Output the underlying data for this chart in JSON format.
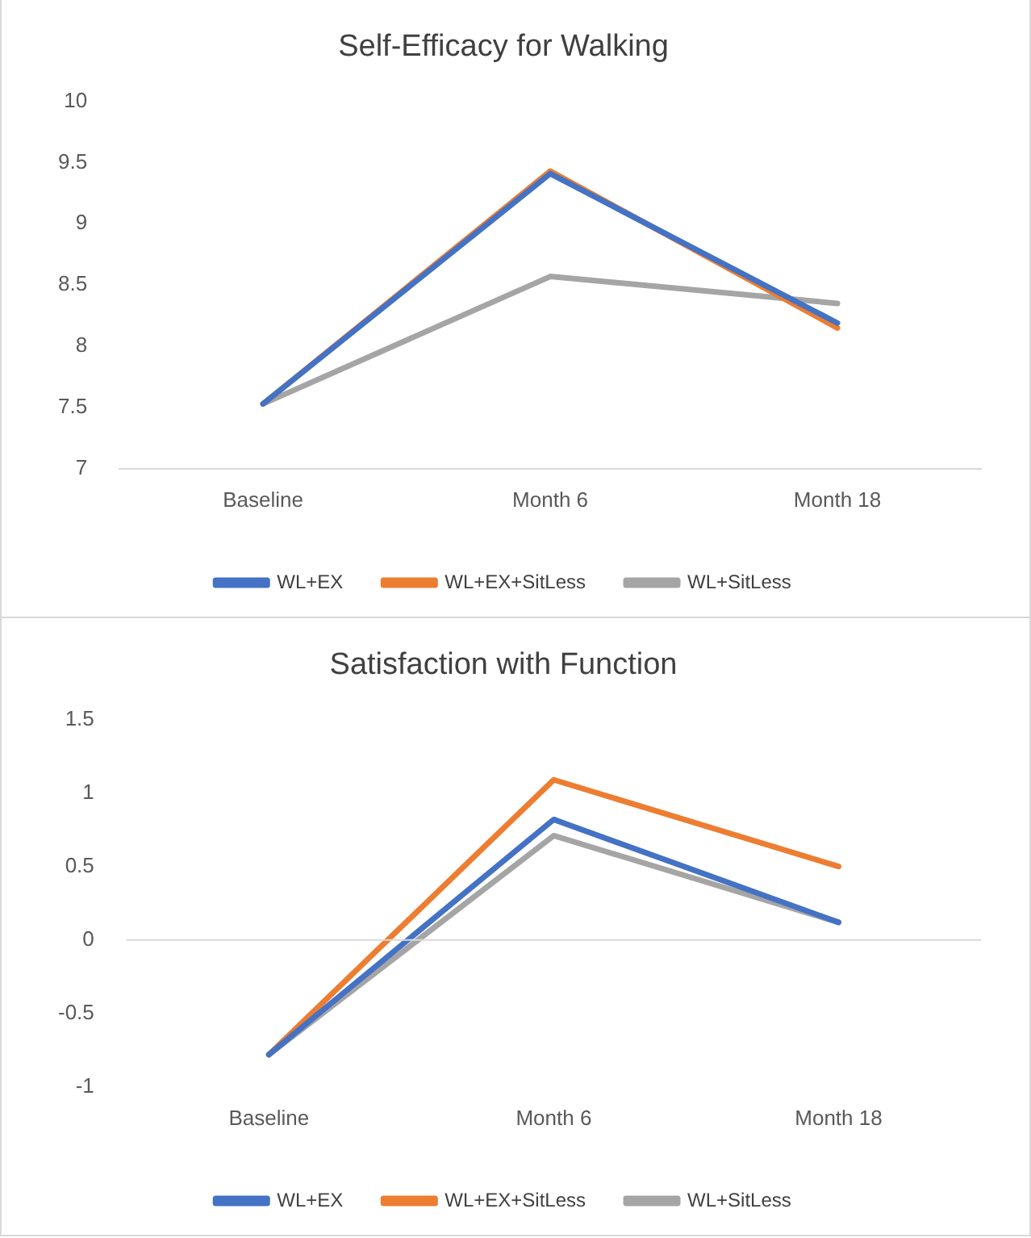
{
  "chart_data": [
    {
      "type": "line",
      "title": "Self-Efficacy for Walking",
      "categories": [
        "Baseline",
        "Month 6",
        "Month 18"
      ],
      "series": [
        {
          "name": "WL+EX",
          "color": "#4472c4",
          "values": [
            7.53,
            9.41,
            8.19
          ]
        },
        {
          "name": "WL+EX+SitLess",
          "color": "#ed7d31",
          "values": [
            7.53,
            9.43,
            8.15
          ]
        },
        {
          "name": "WL+SitLess",
          "color": "#a5a5a5",
          "values": [
            7.53,
            8.57,
            8.35
          ]
        }
      ],
      "ylim": [
        7,
        10
      ],
      "yticks": [
        7,
        7.5,
        8,
        8.5,
        9,
        9.5,
        10
      ],
      "grid": false,
      "legend": "bottom",
      "marker": "none"
    },
    {
      "type": "line",
      "title": "Satisfaction with Function",
      "categories": [
        "Baseline",
        "Month 6",
        "Month 18"
      ],
      "series": [
        {
          "name": "WL+EX",
          "color": "#4472c4",
          "values": [
            -0.78,
            0.82,
            0.12
          ]
        },
        {
          "name": "WL+EX+SitLess",
          "color": "#ed7d31",
          "values": [
            -0.78,
            1.09,
            0.5
          ]
        },
        {
          "name": "WL+SitLess",
          "color": "#a5a5a5",
          "values": [
            -0.78,
            0.71,
            0.12
          ]
        }
      ],
      "ylim": [
        -1,
        1.5
      ],
      "yticks": [
        -1,
        -0.5,
        0,
        0.5,
        1,
        1.5
      ],
      "grid": false,
      "ref_lines": [
        {
          "axis": "y",
          "value": 0,
          "color": "#d9d9d9"
        }
      ],
      "legend": "bottom",
      "marker": "none"
    }
  ]
}
